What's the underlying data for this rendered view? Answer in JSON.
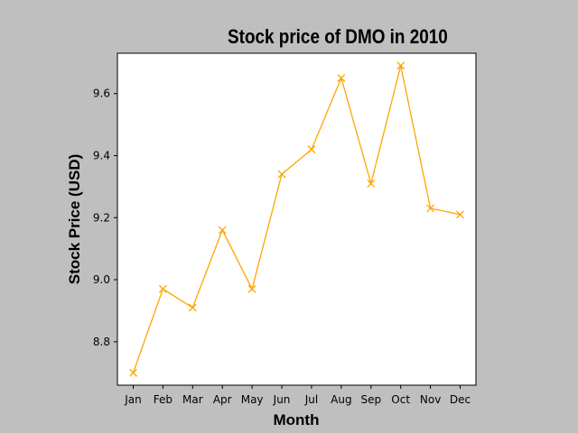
{
  "chart_data": {
    "type": "line",
    "title": "Stock price of DMO in 2010",
    "xlabel": "Month",
    "ylabel": "Stock Price (USD)",
    "categories": [
      "Jan",
      "Feb",
      "Mar",
      "Apr",
      "May",
      "Jun",
      "Jul",
      "Aug",
      "Sep",
      "Oct",
      "Nov",
      "Dec"
    ],
    "series": [
      {
        "values": [
          8.7,
          8.97,
          8.91,
          9.16,
          8.97,
          9.34,
          9.42,
          9.65,
          9.31,
          9.69,
          9.23,
          9.21
        ],
        "color": "#ffa500",
        "marker": "x"
      }
    ],
    "yticks": [
      "8.8",
      "9.0",
      "9.2",
      "9.4",
      "9.6"
    ],
    "ylim": [
      8.66,
      9.73
    ],
    "grid": false,
    "legend": "none",
    "background_color": "#bfbfbf",
    "plot_area_color": "#ffffff"
  }
}
